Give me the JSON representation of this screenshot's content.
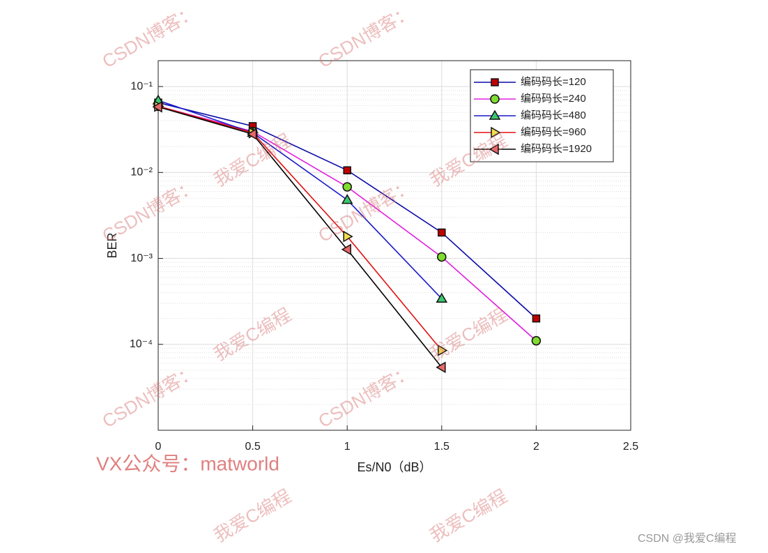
{
  "chart_data": {
    "type": "line",
    "xlabel": "Es/N0（dB）",
    "ylabel": "BER",
    "x": [
      0,
      0.5,
      1,
      1.5,
      2
    ],
    "xlim": [
      0,
      2.5
    ],
    "xticks": [
      0,
      0.5,
      1,
      1.5,
      2,
      2.5
    ],
    "ylim": [
      1e-05,
      0.2
    ],
    "log_y": true,
    "grid": true,
    "minor_grid": true,
    "legend": "upper right",
    "yticks": [
      {
        "value": 0.0001,
        "label": "10⁻⁴"
      },
      {
        "value": 0.001,
        "label": "10⁻³"
      },
      {
        "value": 0.01,
        "label": "10⁻²"
      },
      {
        "value": 0.1,
        "label": "10⁻¹"
      }
    ],
    "series": [
      {
        "name": "编码码长=120",
        "color": "#0a0aa8",
        "marker": "square",
        "marker_color": "#c00000",
        "values": [
          0.065,
          0.0346,
          0.0106,
          0.002,
          0.0002
        ]
      },
      {
        "name": "编码码长=240",
        "color": "#e020e0",
        "marker": "circle",
        "marker_color": "#80dc30",
        "values": [
          0.059,
          0.03,
          0.0068,
          0.00104,
          0.00011
        ]
      },
      {
        "name": "编码码长=480",
        "color": "#1a1ac8",
        "marker": "triangle-up",
        "marker_color": "#3cc870",
        "values": [
          0.069,
          0.029,
          0.0048,
          0.00034,
          null
        ]
      },
      {
        "name": "编码码长=960",
        "color": "#e01010",
        "marker": "triangle-right",
        "marker_color": "#f0dc50",
        "values": [
          0.059,
          0.029,
          0.0018,
          8.5e-05,
          null
        ]
      },
      {
        "name": "编码码长=1920",
        "color": "#000000",
        "marker": "triangle-left",
        "marker_color": "#e86868",
        "values": [
          0.058,
          0.028,
          0.00127,
          5.4e-05,
          null
        ]
      }
    ]
  },
  "watermarks": {
    "blog": "CSDN博客：",
    "author": "我爱C编程",
    "wechat": "VX公众号：matworld",
    "credit": "CSDN @我爱C编程"
  }
}
